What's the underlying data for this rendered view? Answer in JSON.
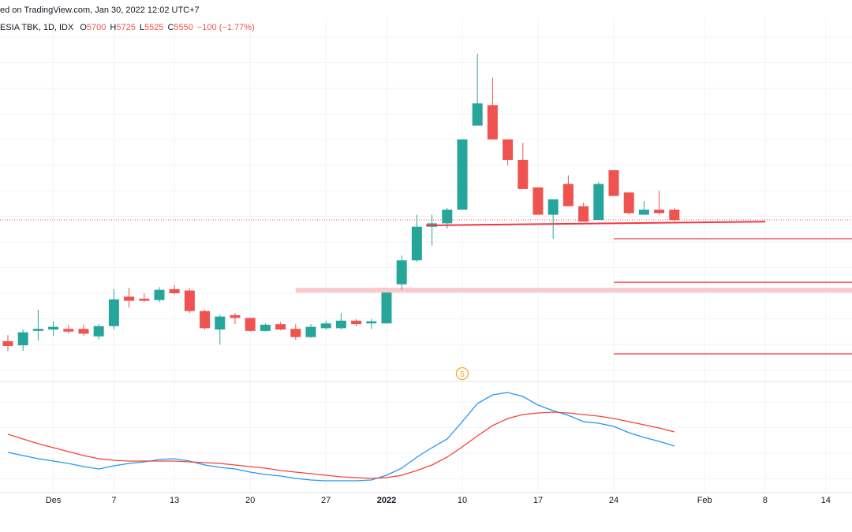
{
  "header": {
    "source": "ed on TradingView.com, Jan 30, 2022 12:02 UTC+7",
    "symbol": "ESIA TBK, 1D, IDX",
    "fields": [
      {
        "label": "O",
        "value": "5700"
      },
      {
        "label": "H",
        "value": "5725"
      },
      {
        "label": "L",
        "value": "5525"
      },
      {
        "label": "C",
        "value": "5550"
      }
    ],
    "change": "−100 (−1.77%)"
  },
  "chart_data": [
    {
      "type": "candlestick",
      "up_color": "#26a69a",
      "down_color": "#ef5350",
      "xlim": [
        -0.52,
        55.73
      ],
      "ylim": [
        3204,
        8506
      ],
      "open": [
        3780,
        3720,
        3930,
        3950,
        3960,
        3960,
        3850,
        4000,
        4430,
        4400,
        4380,
        4540,
        4520,
        4220,
        3950,
        4160,
        4120,
        3930,
        4030,
        3960,
        3840,
        3970,
        3970,
        4080,
        4040,
        4040,
        4610,
        4960,
        5450,
        5500,
        5700,
        6925,
        7225,
        6725,
        6425,
        6025,
        5625,
        6075,
        5750,
        5550,
        6275,
        5950,
        5625,
        5700,
        5700
      ],
      "high": [
        3870,
        3950,
        4240,
        4070,
        4020,
        4020,
        4030,
        4540,
        4560,
        4480,
        4570,
        4600,
        4550,
        4240,
        4170,
        4190,
        4120,
        4040,
        4060,
        4030,
        4030,
        4080,
        4190,
        4100,
        4100,
        4490,
        5030,
        5625,
        5625,
        5725,
        6725,
        7975,
        7625,
        6725,
        6675,
        6025,
        5850,
        6200,
        5800,
        6100,
        6275,
        5950,
        5825,
        5975,
        5725
      ],
      "low": [
        3640,
        3640,
        3790,
        3860,
        3890,
        3860,
        3810,
        3950,
        4270,
        4350,
        4350,
        4460,
        4190,
        3950,
        3730,
        4030,
        3920,
        3920,
        3940,
        3800,
        3830,
        3950,
        3950,
        4000,
        3960,
        4040,
        4530,
        4940,
        5175,
        5425,
        5700,
        6925,
        6725,
        6350,
        6000,
        5625,
        5275,
        5750,
        5525,
        5550,
        5900,
        5625,
        5625,
        5625,
        5525
      ],
      "close": [
        3710,
        3910,
        3960,
        3990,
        3920,
        3890,
        4000,
        4390,
        4370,
        4370,
        4530,
        4480,
        4220,
        3970,
        4140,
        4120,
        3930,
        4020,
        3950,
        3840,
        3990,
        4040,
        4080,
        4030,
        4070,
        4490,
        4960,
        5450,
        5500,
        5700,
        6725,
        7250,
        6725,
        6425,
        6000,
        5625,
        5850,
        5750,
        5525,
        6075,
        5900,
        5650,
        5700,
        5650,
        5550
      ],
      "trend_lines": [
        {
          "x": [
            27.6,
            50
          ],
          "y": [
            5470,
            5525
          ],
          "color": "#f23645"
        }
      ],
      "levels": [
        {
          "value": 5275,
          "x_start": 40,
          "color": "#f23645"
        },
        {
          "value": 4640,
          "x_start": 40,
          "color": "#f23645"
        },
        {
          "value": 3595,
          "x_start": 40,
          "color": "#f23645"
        }
      ],
      "zones": [
        {
          "range": [
            4490,
            4560
          ],
          "x_start": 19,
          "color": "#f9c9cc"
        }
      ],
      "events": [
        {
          "x": 30,
          "label": "5",
          "color": "#f9a825"
        }
      ]
    },
    {
      "type": "line",
      "xlim": [
        -0.52,
        55.73
      ],
      "ylim": [
        0,
        140
      ],
      "x": [
        0,
        1,
        2,
        3,
        4,
        5,
        6,
        7,
        8,
        9,
        10,
        11,
        12,
        13,
        14,
        15,
        16,
        17,
        18,
        19,
        20,
        21,
        22,
        23,
        24,
        25,
        26,
        27,
        28,
        29,
        30,
        31,
        32,
        33,
        34,
        35,
        36,
        37,
        38,
        39,
        40,
        41,
        42,
        43,
        44
      ],
      "series": [
        {
          "color": "#2196f3",
          "values": [
            51,
            47,
            43,
            40,
            37,
            33,
            30,
            34,
            37,
            39,
            42,
            43,
            40,
            35,
            32,
            30,
            26,
            23,
            21,
            18,
            16,
            15,
            15,
            15,
            16,
            22,
            31,
            45,
            57,
            68,
            90,
            113,
            124,
            127,
            122,
            111,
            104,
            98,
            90,
            88,
            84,
            76,
            70,
            65,
            59
          ]
        },
        {
          "color": "#f44336",
          "values": [
            74,
            68,
            62,
            57,
            52,
            47,
            43,
            41,
            40,
            40,
            40,
            40,
            39,
            38,
            37,
            35,
            33,
            31,
            28,
            26,
            24,
            22,
            20,
            19,
            18,
            19,
            22,
            28,
            35,
            45,
            58,
            72,
            85,
            94,
            99,
            101,
            102,
            101,
            99,
            97,
            94,
            90,
            86,
            82,
            77
          ]
        }
      ],
      "xticks": [
        {
          "value": 3,
          "label": "Des"
        },
        {
          "value": 7,
          "label": "7"
        },
        {
          "value": 11,
          "label": "13"
        },
        {
          "value": 16,
          "label": "20"
        },
        {
          "value": 21,
          "label": "27"
        },
        {
          "value": 25,
          "label": "2022"
        },
        {
          "value": 30,
          "label": "10"
        },
        {
          "value": 35,
          "label": "17"
        },
        {
          "value": 40,
          "label": "24"
        },
        {
          "value": 46,
          "label": "Feb"
        },
        {
          "value": 50,
          "label": "8"
        },
        {
          "value": 54,
          "label": "14"
        }
      ]
    }
  ]
}
